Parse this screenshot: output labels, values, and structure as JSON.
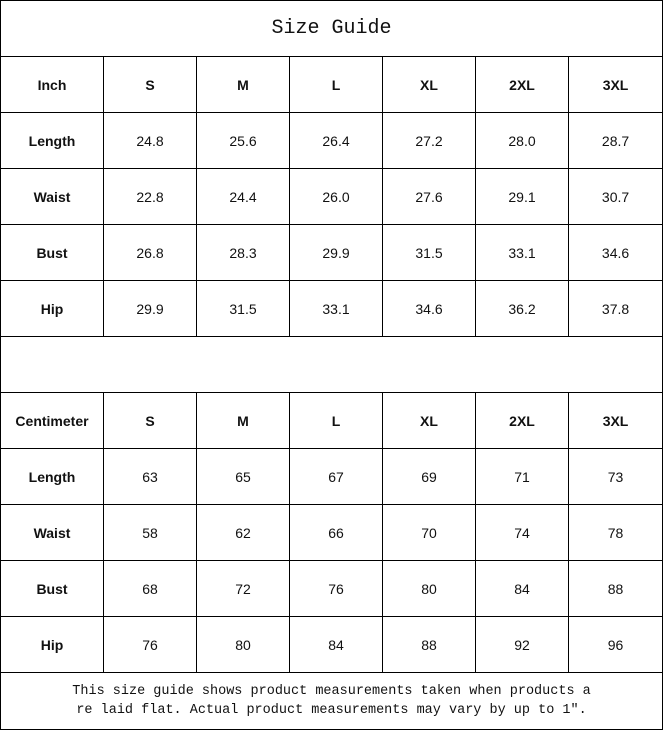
{
  "title": "Size Guide",
  "sizes": [
    "S",
    "M",
    "L",
    "XL",
    "2XL",
    "3XL"
  ],
  "tables": [
    {
      "unit": "Inch",
      "rows": [
        {
          "label": "Length",
          "values": [
            "24.8",
            "25.6",
            "26.4",
            "27.2",
            "28.0",
            "28.7"
          ]
        },
        {
          "label": "Waist",
          "values": [
            "22.8",
            "24.4",
            "26.0",
            "27.6",
            "29.1",
            "30.7"
          ]
        },
        {
          "label": "Bust",
          "values": [
            "26.8",
            "28.3",
            "29.9",
            "31.5",
            "33.1",
            "34.6"
          ]
        },
        {
          "label": "Hip",
          "values": [
            "29.9",
            "31.5",
            "33.1",
            "34.6",
            "36.2",
            "37.8"
          ]
        }
      ]
    },
    {
      "unit": "Centimeter",
      "rows": [
        {
          "label": "Length",
          "values": [
            "63",
            "65",
            "67",
            "69",
            "71",
            "73"
          ]
        },
        {
          "label": "Waist",
          "values": [
            "58",
            "62",
            "66",
            "70",
            "74",
            "78"
          ]
        },
        {
          "label": "Bust",
          "values": [
            "68",
            "72",
            "76",
            "80",
            "84",
            "88"
          ]
        },
        {
          "label": "Hip",
          "values": [
            "76",
            "80",
            "84",
            "88",
            "92",
            "96"
          ]
        }
      ]
    }
  ],
  "note": {
    "line1": "This size guide shows product measurements taken when products a",
    "line2": "re laid flat. Actual product measurements may vary by up to 1″."
  }
}
